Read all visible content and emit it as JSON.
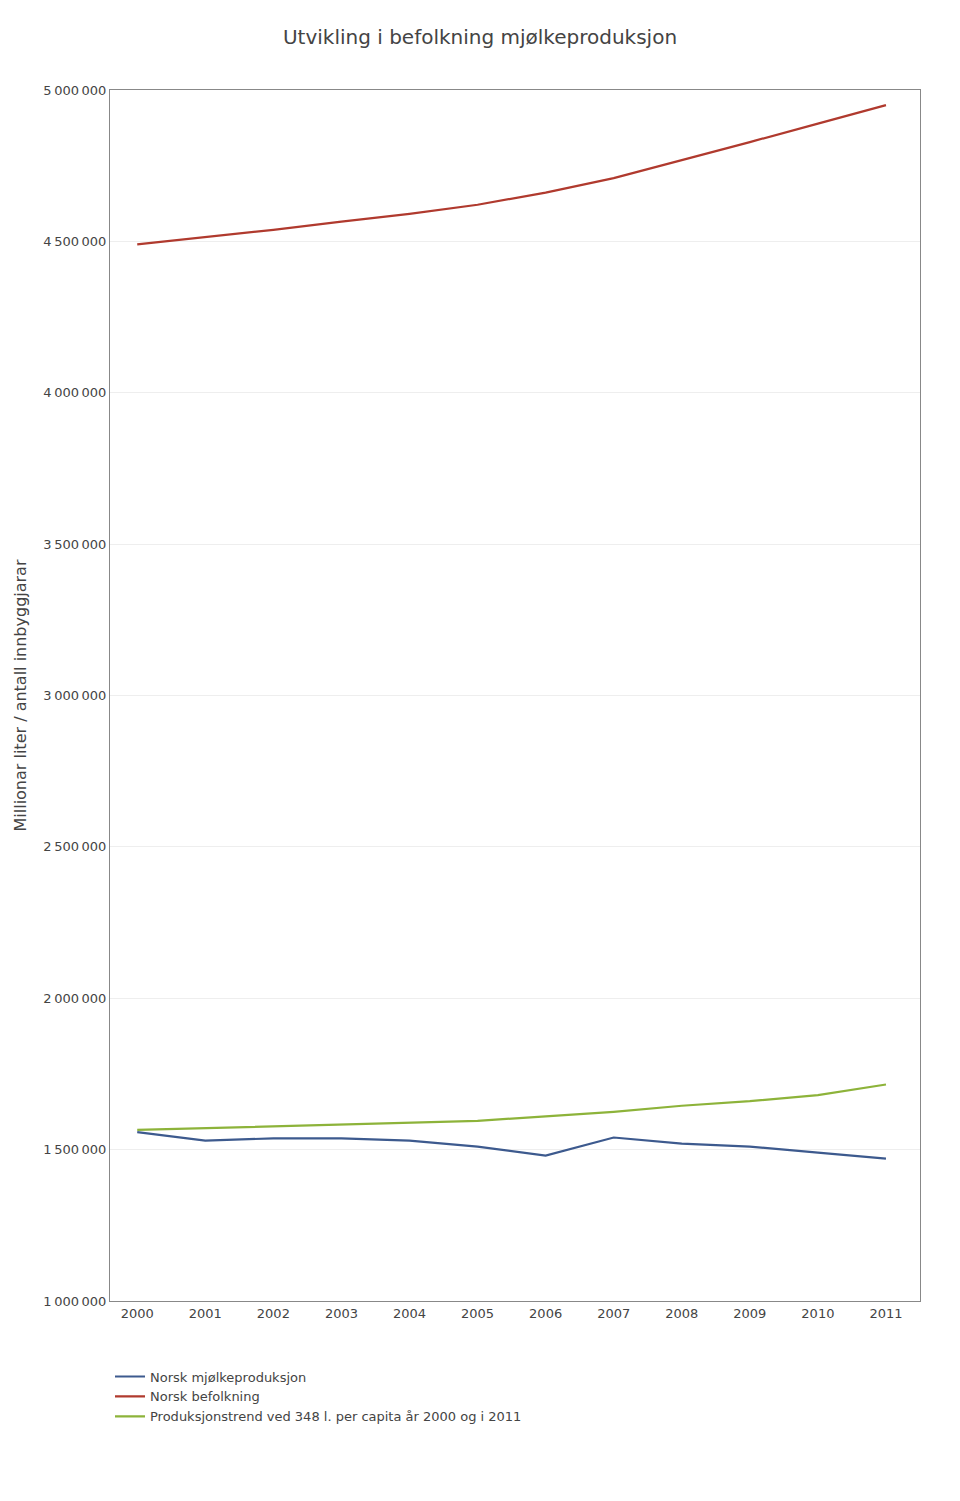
{
  "chart_data": {
    "type": "line",
    "title": "Utvikling i befolkning mjølkeproduksjon",
    "ylabel": "Millionar liter / antall innbyggjarar",
    "x": [
      2000,
      2001,
      2002,
      2003,
      2004,
      2005,
      2006,
      2007,
      2008,
      2009,
      2010,
      2011
    ],
    "series": [
      {
        "name": "Norsk mjølkeproduksjon",
        "color": "#3d5a8e",
        "values": [
          1558000,
          1530000,
          1537000,
          1537000,
          1530000,
          1510000,
          1480000,
          1540000,
          1520000,
          1510000,
          1490000,
          1470000
        ]
      },
      {
        "name": "Norsk befolkning",
        "color": "#b03a2e",
        "values": [
          4490000,
          4514000,
          4538000,
          4565000,
          4591000,
          4621000,
          4661000,
          4709000,
          4768000,
          4828000,
          4889000,
          4950000
        ]
      },
      {
        "name": "Produksjonstrend ved 348 l. per capita år 2000 og i 2011",
        "color": "#8db33a",
        "values": [
          1565000,
          1571000,
          1577000,
          1583000,
          1589000,
          1595000,
          1610000,
          1625000,
          1645000,
          1660000,
          1680000,
          1715000
        ]
      }
    ],
    "xlim": [
      1999.6,
      2011.5
    ],
    "xticks": [
      2000,
      2001,
      2002,
      2003,
      2004,
      2005,
      2006,
      2007,
      2008,
      2009,
      2010,
      2011
    ],
    "ylim": [
      1000000,
      5000000
    ],
    "yticks": [
      {
        "value": 1000000,
        "label": "1 000 000"
      },
      {
        "value": 1500000,
        "label": "1 500 000"
      },
      {
        "value": 2000000,
        "label": "2 000 000"
      },
      {
        "value": 2500000,
        "label": "2 500 000"
      },
      {
        "value": 3000000,
        "label": "3 000 000"
      },
      {
        "value": 3500000,
        "label": "3 500 000"
      },
      {
        "value": 4000000,
        "label": "4 000 000"
      },
      {
        "value": 4500000,
        "label": "4 500 000"
      },
      {
        "value": 5000000,
        "label": "5 000 000"
      }
    ],
    "grid": "y",
    "legend": "bottom"
  }
}
